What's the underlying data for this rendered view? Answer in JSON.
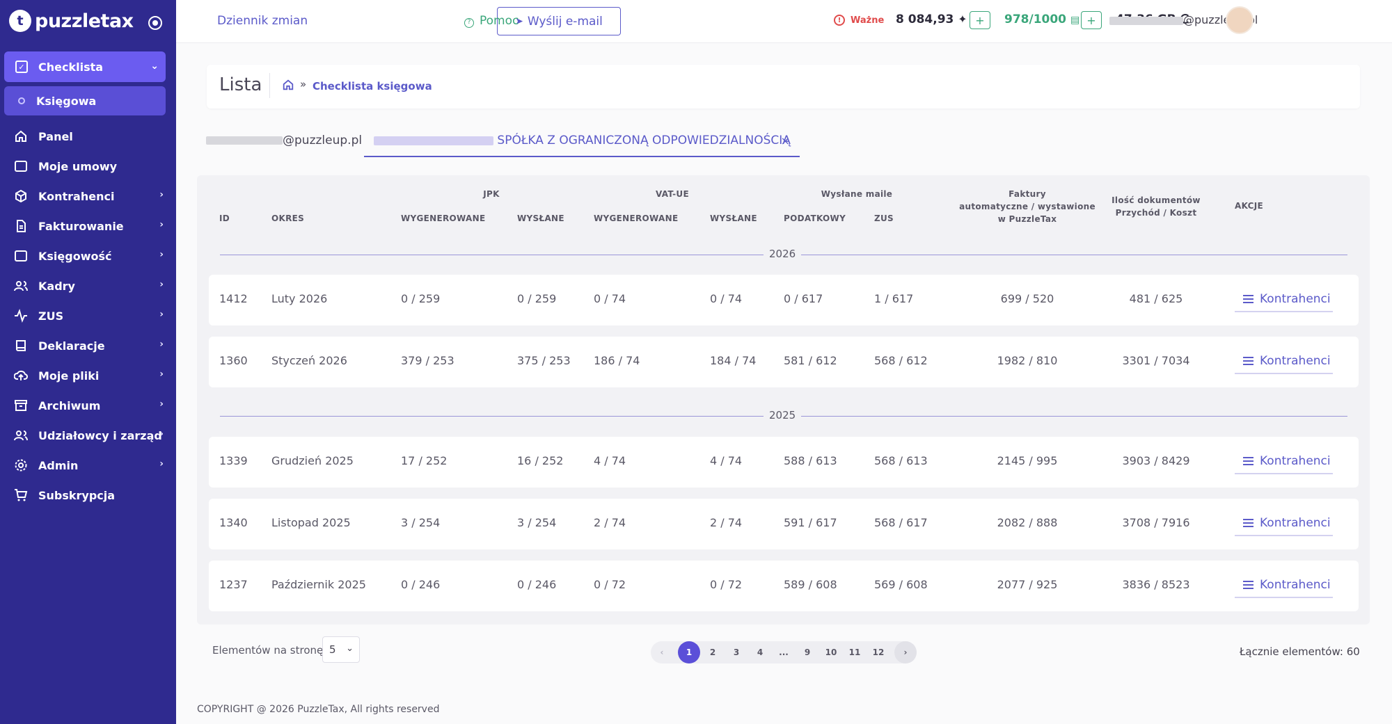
{
  "app": {
    "logo_text": "puzzletax",
    "logo_mark": "t"
  },
  "sidebar": {
    "active_group": {
      "label": "Checklista",
      "icon": "checkbox-icon"
    },
    "active_sub": {
      "label": "Księgowa"
    },
    "items": [
      {
        "label": "Panel",
        "icon": "home-icon",
        "has_chevron": false
      },
      {
        "label": "Moje umowy",
        "icon": "briefcase-icon",
        "has_chevron": false
      },
      {
        "label": "Kontrahenci",
        "icon": "cube-icon",
        "has_chevron": true
      },
      {
        "label": "Fakturowanie",
        "icon": "document-icon",
        "has_chevron": true
      },
      {
        "label": "Księgowość",
        "icon": "archive-icon",
        "has_chevron": true
      },
      {
        "label": "Kadry",
        "icon": "users-icon",
        "has_chevron": true
      },
      {
        "label": "ZUS",
        "icon": "activity-icon",
        "has_chevron": true
      },
      {
        "label": "Deklaracje",
        "icon": "book-icon",
        "has_chevron": true
      },
      {
        "label": "Moje pliki",
        "icon": "cloud-upload-icon",
        "has_chevron": true
      },
      {
        "label": "Archiwum",
        "icon": "archive-box-icon",
        "has_chevron": true
      },
      {
        "label": "Udziałowcy i zarząd",
        "icon": "users-icon",
        "has_chevron": true
      },
      {
        "label": "Admin",
        "icon": "gear-icon",
        "has_chevron": true
      },
      {
        "label": "Subskrypcja",
        "icon": "cart-icon",
        "has_chevron": false
      }
    ]
  },
  "header": {
    "changelog": "Dziennik zmian",
    "send_email": "Wyślij e-mail",
    "help": "Pomoc",
    "important": "Ważne",
    "balance": "8 084,93",
    "documents": "978/1000",
    "storage": "47.36 GB",
    "email_domain": "@puzzleup.pl"
  },
  "page": {
    "title": "Lista",
    "breadcrumb": "Checklista księgowa"
  },
  "tabs": {
    "user_domain": "@puzzleup.pl",
    "company": "SPÓŁKA Z OGRANICZONĄ ODPOWIEDZIALNOŚCIĄ",
    "close": "×"
  },
  "table": {
    "group_headers": {
      "jpk": "JPK",
      "vat_ue": "VAT-UE",
      "sent_mails": "Wysłane maile",
      "invoices": [
        "Faktury",
        "automatyczne / wystawione",
        "w PuzzleTax"
      ],
      "docs": [
        "Ilość dokumentów",
        "Przychód / Koszt"
      ],
      "actions": "AKCJE"
    },
    "col_headers": {
      "id": "ID",
      "period": "OKRES",
      "jpk_gen": "WYGENEROWANE",
      "jpk_sent": "WYSŁANE",
      "vat_gen": "WYGENEROWANE",
      "vat_sent": "WYSŁANE",
      "mail_tax": "PODATKOWY",
      "mail_zus": "ZUS"
    },
    "years": [
      "2026",
      "2025"
    ],
    "rows": [
      {
        "id": "1412",
        "period": "Luty 2026",
        "jpk_gen": "0 / 259",
        "jpk_sent": "0 / 259",
        "vat_gen": "0 / 74",
        "vat_sent": "0 / 74",
        "mail_tax": "0 / 617",
        "mail_zus": "1 / 617",
        "invoices": "699 / 520",
        "docs": "481 / 625",
        "action": "Kontrahenci"
      },
      {
        "id": "1360",
        "period": "Styczeń 2026",
        "jpk_gen": "379 / 253",
        "jpk_sent": "375 / 253",
        "vat_gen": "186 / 74",
        "vat_sent": "184 / 74",
        "mail_tax": "581 / 612",
        "mail_zus": "568 / 612",
        "invoices": "1982 / 810",
        "docs": "3301 / 7034",
        "action": "Kontrahenci"
      },
      {
        "id": "1339",
        "period": "Grudzień 2025",
        "jpk_gen": "17 / 252",
        "jpk_sent": "16 / 252",
        "vat_gen": "4 / 74",
        "vat_sent": "4 / 74",
        "mail_tax": "588 / 613",
        "mail_zus": "568 / 613",
        "invoices": "2145 / 995",
        "docs": "3903 / 8429",
        "action": "Kontrahenci"
      },
      {
        "id": "1340",
        "period": "Listopad 2025",
        "jpk_gen": "3 / 254",
        "jpk_sent": "3 / 254",
        "vat_gen": "2 / 74",
        "vat_sent": "2 / 74",
        "mail_tax": "591 / 617",
        "mail_zus": "568 / 617",
        "invoices": "2082 / 888",
        "docs": "3708 / 7916",
        "action": "Kontrahenci"
      },
      {
        "id": "1237",
        "period": "Październik 2025",
        "jpk_gen": "0 / 246",
        "jpk_sent": "0 / 246",
        "vat_gen": "0 / 72",
        "vat_sent": "0 / 72",
        "mail_tax": "589 / 608",
        "mail_zus": "569 / 608",
        "invoices": "2077 / 925",
        "docs": "3836 / 8523",
        "action": "Kontrahenci"
      }
    ]
  },
  "pagination": {
    "per_page_label": "Elementów na stronę",
    "per_page_value": "5",
    "pages": [
      "1",
      "2",
      "3",
      "4",
      "...",
      "9",
      "10",
      "11",
      "12"
    ],
    "active_page": "1",
    "prev": "‹",
    "next": "›",
    "total": "Łącznie elementów: 60"
  },
  "footer": {
    "copyright": "COPYRIGHT @ 2026 PuzzleTax, All rights reserved"
  },
  "colors": {
    "sidebar": "#2f2a8f",
    "accent": "#5b5ac9",
    "active": "#6b5cf0",
    "success": "#3aa67a",
    "danger": "#e04b4b"
  }
}
